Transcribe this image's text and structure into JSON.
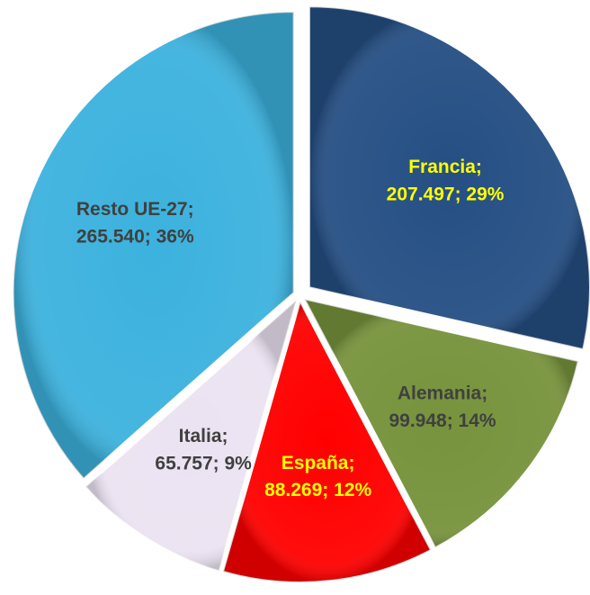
{
  "chart_data": {
    "type": "pie",
    "categories": [
      "Francia;",
      "Alemania;",
      "España;",
      "Italia;",
      "Resto UE-27;"
    ],
    "values": [
      207497,
      99948,
      88269,
      65757,
      265540
    ],
    "value_labels": [
      "207.497; 29%",
      "99.948; 14%",
      "88.269; 12%",
      "65.757; 9%",
      "265.540; 36%"
    ],
    "colors": [
      "#254f84",
      "#77933c",
      "#ff0000",
      "#ece3f2",
      "#3cb2de"
    ],
    "label_colors": [
      "#ffff00",
      "#404040",
      "#ffff00",
      "#404040",
      "#404040"
    ]
  }
}
